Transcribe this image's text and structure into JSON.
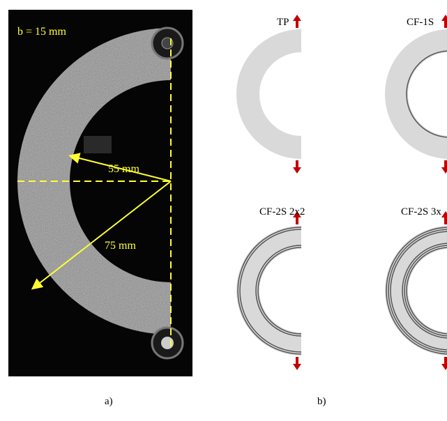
{
  "panel_a": {
    "width_label": "b = 15 mm",
    "inner_radius_label": "55 mm",
    "outer_radius_label": "75 mm",
    "caption": "a)"
  },
  "panel_b": {
    "specimens": [
      {
        "label": "TP"
      },
      {
        "label": "CF-1S"
      },
      {
        "label": "CF-2S 2x2"
      },
      {
        "label": "CF-2S 3x"
      }
    ],
    "caption": "b)"
  }
}
